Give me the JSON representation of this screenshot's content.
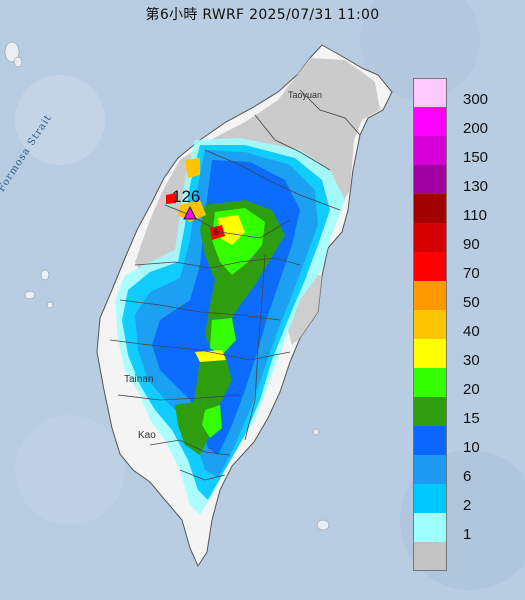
{
  "title": "第6小時  RWRF 2025/07/31 11:00",
  "max_value": "126",
  "places": {
    "taoyuan": "Taoyuan",
    "tainan": "Tainan",
    "kaohsiung": "Kao",
    "strait": "Formosa Strait"
  },
  "legend": {
    "items": [
      {
        "label": "300",
        "color": "#ffc7ff"
      },
      {
        "label": "200",
        "color": "#ff00ff"
      },
      {
        "label": "150",
        "color": "#d600d6"
      },
      {
        "label": "130",
        "color": "#a300a3"
      },
      {
        "label": "110",
        "color": "#a30000"
      },
      {
        "label": "90",
        "color": "#d60000"
      },
      {
        "label": "70",
        "color": "#ff0000"
      },
      {
        "label": "50",
        "color": "#ff9900"
      },
      {
        "label": "40",
        "color": "#ffc400"
      },
      {
        "label": "30",
        "color": "#ffff00"
      },
      {
        "label": "20",
        "color": "#33ff00"
      },
      {
        "label": "15",
        "color": "#2e9e0f"
      },
      {
        "label": "10",
        "color": "#0b66ff"
      },
      {
        "label": "6",
        "color": "#1e9bf0"
      },
      {
        "label": "2",
        "color": "#00c8ff"
      },
      {
        "label": "1",
        "color": "#9fffff"
      },
      {
        "label": "",
        "color": "#c4c4c4"
      }
    ]
  }
}
